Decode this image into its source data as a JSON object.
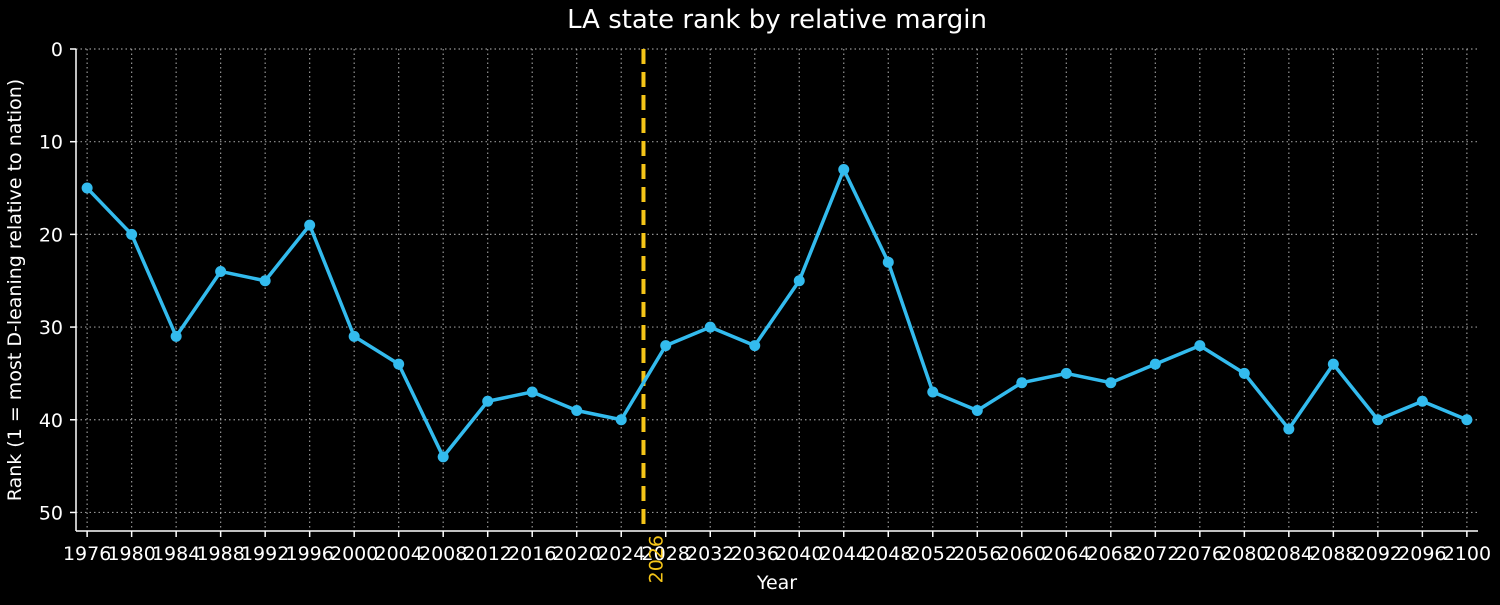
{
  "chart_data": {
    "type": "line",
    "title": "LA state rank by relative margin",
    "xlabel": "Year",
    "ylabel": "Rank (1 = most D-leaning relative to nation)",
    "y_inverted": true,
    "ylim": [
      52,
      0
    ],
    "yticks": [
      0,
      10,
      20,
      30,
      40,
      50
    ],
    "xlim": [
      1975,
      2101
    ],
    "grid": true,
    "legend": "none",
    "colors": {
      "background": "#000000",
      "foreground": "#ffffff",
      "line": "#33bbee",
      "marker_line": "#f5c518",
      "grid": "#b0b0b0"
    },
    "series": [
      {
        "color": "#33bbee",
        "x": [
          1976,
          1980,
          1984,
          1988,
          1992,
          1996,
          2000,
          2004,
          2008,
          2012,
          2016,
          2020,
          2024,
          2028,
          2032,
          2036,
          2040,
          2044,
          2048,
          2052,
          2056,
          2060,
          2064,
          2068,
          2072,
          2076,
          2080,
          2084,
          2088,
          2092,
          2096,
          2100
        ],
        "values": [
          15,
          20,
          31,
          24,
          25,
          19,
          31,
          34,
          44,
          38,
          37,
          39,
          40,
          32,
          30,
          32,
          25,
          13,
          23,
          37,
          39,
          36,
          35,
          36,
          34,
          32,
          35,
          41,
          34,
          40,
          38,
          40
        ]
      }
    ],
    "vertical_marker": {
      "x": 2026,
      "label": "2026",
      "color": "#f5c518"
    }
  }
}
